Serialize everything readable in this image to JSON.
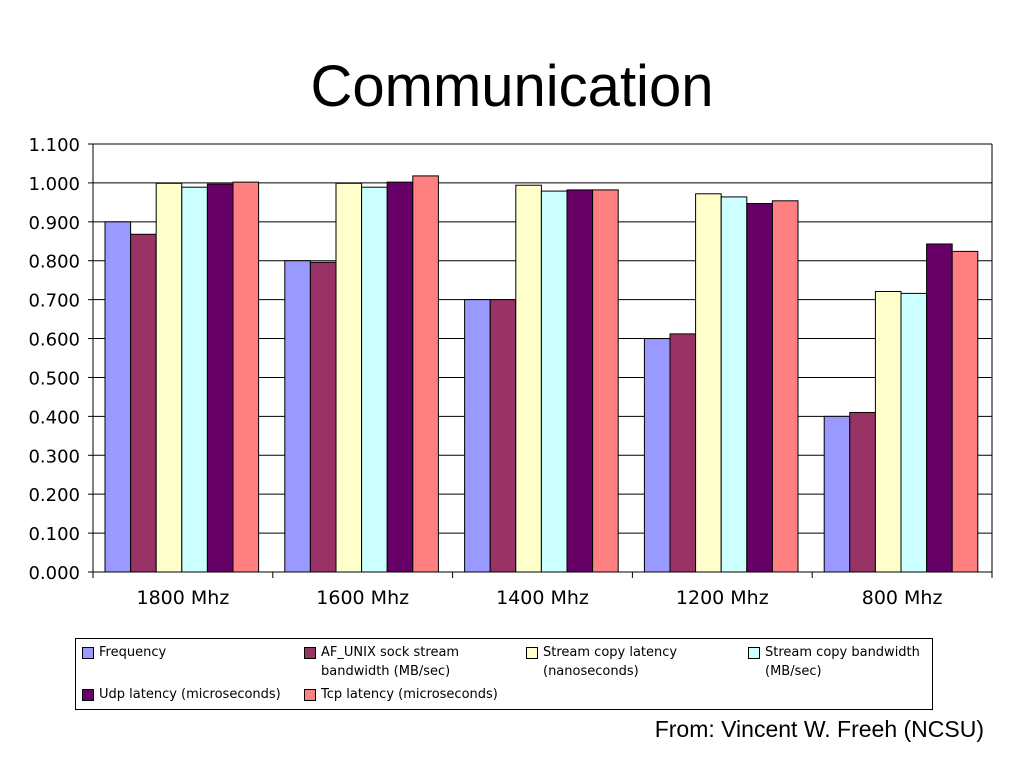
{
  "slide": {
    "title": "Communication",
    "source": "From: Vincent W. Freeh (NCSU)"
  },
  "legend": {
    "items": [
      {
        "lines": [
          "Frequency"
        ]
      },
      {
        "lines": [
          "AF_UNIX sock stream",
          "bandwidth (MB/sec)"
        ]
      },
      {
        "lines": [
          "Stream copy latency",
          "(nanoseconds)"
        ]
      },
      {
        "lines": [
          "Stream copy bandwidth",
          "(MB/sec)"
        ]
      },
      {
        "lines": [
          "Udp latency (microseconds)"
        ]
      },
      {
        "lines": [
          "Tcp latency (microseconds)"
        ]
      }
    ]
  },
  "chart_data": {
    "type": "bar",
    "title": "",
    "xlabel": "",
    "ylabel": "",
    "ylim": [
      0,
      1.1
    ],
    "yticks": [
      "0.000",
      "0.100",
      "0.200",
      "0.300",
      "0.400",
      "0.500",
      "0.600",
      "0.700",
      "0.800",
      "0.900",
      "1.000",
      "1.100"
    ],
    "grid": true,
    "legend_position": "bottom",
    "categories": [
      "1800 Mhz",
      "1600 Mhz",
      "1400 Mhz",
      "1200 Mhz",
      "800 Mhz"
    ],
    "series": [
      {
        "name": "Frequency",
        "color": "#9999ff",
        "values": [
          0.9,
          0.8,
          0.7,
          0.6,
          0.4
        ]
      },
      {
        "name": "AF_UNIX sock stream bandwidth (MB/sec)",
        "color": "#993366",
        "values": [
          0.868,
          0.796,
          0.7,
          0.612,
          0.41
        ]
      },
      {
        "name": "Stream copy latency (nanoseconds)",
        "color": "#ffffcc",
        "values": [
          0.999,
          0.999,
          0.994,
          0.972,
          0.721
        ]
      },
      {
        "name": "Stream copy bandwidth (MB/sec)",
        "color": "#ccffff",
        "values": [
          0.989,
          0.989,
          0.979,
          0.964,
          0.716
        ]
      },
      {
        "name": "Udp latency (microseconds)",
        "color": "#660066",
        "values": [
          0.997,
          1.002,
          0.982,
          0.947,
          0.843
        ]
      },
      {
        "name": "Tcp latency (microseconds)",
        "color": "#ff8080",
        "values": [
          1.002,
          1.018,
          0.982,
          0.954,
          0.824
        ]
      }
    ]
  }
}
